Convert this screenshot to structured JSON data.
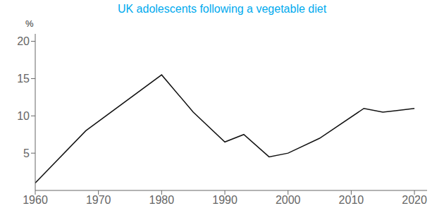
{
  "chart_data": {
    "type": "line",
    "title": "UK adolescents following a vegetable diet",
    "ylabel": "%",
    "x": [
      1960,
      1968,
      1980,
      1985,
      1990,
      1993,
      1997,
      2000,
      2005,
      2012,
      2015,
      2017,
      2020
    ],
    "values": [
      1,
      8,
      15.5,
      10.5,
      6.5,
      7.5,
      4.5,
      5.0,
      7.0,
      11.0,
      10.5,
      10.7,
      11.0
    ],
    "color": "#111111",
    "xlim": [
      1960,
      2022
    ],
    "ylim": [
      0,
      21
    ],
    "xticks": [
      1960,
      1970,
      1980,
      1990,
      2000,
      2010,
      2020
    ],
    "yticks": [
      5,
      10,
      15,
      20
    ],
    "grid": false
  }
}
